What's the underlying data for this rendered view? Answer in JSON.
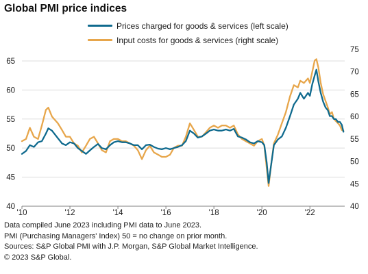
{
  "title": "Global PMI price indices",
  "legend": [
    {
      "label": "Prices charged for goods & services (left scale)",
      "color": "#0f6a8e"
    },
    {
      "label": "Input costs for goods & services (right scale)",
      "color": "#e7a64b"
    }
  ],
  "notes": [
    "Data compiled June 2023 including PMI data to June 2023.",
    "PMI (Purchasing Managers' Index) 50 = no change on prior month.",
    "Sources: S&P Global PMI with J.P. Morgan, S&P Global Market Intelligence.",
    "© 2023 S&P Global."
  ],
  "chart_data": {
    "type": "line",
    "title": "Global PMI price indices",
    "x_range": [
      2010.0,
      2023.45
    ],
    "x_ticks": [
      {
        "value": 2010,
        "label": "'10"
      },
      {
        "value": 2012,
        "label": "'12"
      },
      {
        "value": 2014,
        "label": "'14"
      },
      {
        "value": 2016,
        "label": "'16"
      },
      {
        "value": 2018,
        "label": "'18"
      },
      {
        "value": 2020,
        "label": "'20"
      },
      {
        "value": 2022,
        "label": "'22"
      }
    ],
    "y_left": {
      "range": [
        40,
        67
      ],
      "ticks": [
        40,
        45,
        50,
        55,
        60,
        65
      ]
    },
    "y_right": {
      "range": [
        40,
        75
      ],
      "ticks": [
        40,
        45,
        50,
        55,
        60,
        65,
        70,
        75
      ]
    },
    "grid": "horizontal",
    "legend_position": "top",
    "series": [
      {
        "name": "Prices charged for goods & services (left scale)",
        "axis": "left",
        "color": "#0f6a8e",
        "points": [
          [
            2010.0,
            49.0
          ],
          [
            2010.17,
            49.5
          ],
          [
            2010.33,
            50.5
          ],
          [
            2010.5,
            50.2
          ],
          [
            2010.67,
            51.0
          ],
          [
            2010.83,
            51.2
          ],
          [
            2011.0,
            52.5
          ],
          [
            2011.1,
            53.4
          ],
          [
            2011.25,
            53.0
          ],
          [
            2011.5,
            51.7
          ],
          [
            2011.67,
            50.8
          ],
          [
            2011.83,
            50.5
          ],
          [
            2012.0,
            51.0
          ],
          [
            2012.17,
            50.8
          ],
          [
            2012.33,
            50.0
          ],
          [
            2012.5,
            49.5
          ],
          [
            2012.67,
            49.0
          ],
          [
            2012.83,
            49.6
          ],
          [
            2013.0,
            50.2
          ],
          [
            2013.17,
            50.7
          ],
          [
            2013.33,
            50.0
          ],
          [
            2013.5,
            49.8
          ],
          [
            2013.67,
            50.5
          ],
          [
            2013.83,
            51.0
          ],
          [
            2014.0,
            51.2
          ],
          [
            2014.17,
            51.0
          ],
          [
            2014.33,
            51.0
          ],
          [
            2014.5,
            50.8
          ],
          [
            2014.67,
            50.5
          ],
          [
            2014.83,
            50.5
          ],
          [
            2015.0,
            49.8
          ],
          [
            2015.17,
            50.5
          ],
          [
            2015.33,
            50.6
          ],
          [
            2015.5,
            50.2
          ],
          [
            2015.67,
            49.9
          ],
          [
            2015.83,
            49.8
          ],
          [
            2016.0,
            50.0
          ],
          [
            2016.17,
            49.8
          ],
          [
            2016.33,
            50.0
          ],
          [
            2016.5,
            50.2
          ],
          [
            2016.67,
            50.5
          ],
          [
            2016.83,
            51.2
          ],
          [
            2017.0,
            53.0
          ],
          [
            2017.17,
            52.5
          ],
          [
            2017.33,
            51.8
          ],
          [
            2017.5,
            52.0
          ],
          [
            2017.67,
            52.5
          ],
          [
            2017.83,
            53.0
          ],
          [
            2018.0,
            53.2
          ],
          [
            2018.17,
            53.0
          ],
          [
            2018.33,
            53.0
          ],
          [
            2018.5,
            53.2
          ],
          [
            2018.67,
            53.0
          ],
          [
            2018.83,
            53.3
          ],
          [
            2019.0,
            52.0
          ],
          [
            2019.17,
            51.8
          ],
          [
            2019.33,
            51.5
          ],
          [
            2019.5,
            51.0
          ],
          [
            2019.67,
            50.8
          ],
          [
            2019.83,
            51.2
          ],
          [
            2020.0,
            51.0
          ],
          [
            2020.1,
            50.5
          ],
          [
            2020.2,
            47.5
          ],
          [
            2020.28,
            44.0
          ],
          [
            2020.38,
            47.0
          ],
          [
            2020.5,
            50.5
          ],
          [
            2020.67,
            51.5
          ],
          [
            2020.83,
            52.0
          ],
          [
            2021.0,
            53.5
          ],
          [
            2021.17,
            55.5
          ],
          [
            2021.33,
            57.5
          ],
          [
            2021.5,
            58.5
          ],
          [
            2021.6,
            59.5
          ],
          [
            2021.75,
            58.5
          ],
          [
            2021.92,
            59.5
          ],
          [
            2022.0,
            59.0
          ],
          [
            2022.1,
            61.0
          ],
          [
            2022.2,
            62.5
          ],
          [
            2022.27,
            63.5
          ],
          [
            2022.35,
            61.5
          ],
          [
            2022.45,
            59.5
          ],
          [
            2022.55,
            58.0
          ],
          [
            2022.65,
            57.0
          ],
          [
            2022.75,
            56.5
          ],
          [
            2022.83,
            55.5
          ],
          [
            2022.92,
            55.5
          ],
          [
            2023.0,
            55.0
          ],
          [
            2023.08,
            55.0
          ],
          [
            2023.17,
            54.5
          ],
          [
            2023.25,
            54.5
          ],
          [
            2023.33,
            54.0
          ],
          [
            2023.4,
            52.8
          ]
        ]
      },
      {
        "name": "Input costs for goods & services (right scale)",
        "axis": "right",
        "color": "#e7a64b",
        "points": [
          [
            2010.0,
            54.5
          ],
          [
            2010.17,
            55.0
          ],
          [
            2010.33,
            57.5
          ],
          [
            2010.5,
            55.5
          ],
          [
            2010.67,
            55.0
          ],
          [
            2010.83,
            58.0
          ],
          [
            2011.0,
            61.5
          ],
          [
            2011.1,
            62.0
          ],
          [
            2011.25,
            60.0
          ],
          [
            2011.5,
            58.5
          ],
          [
            2011.67,
            57.0
          ],
          [
            2011.83,
            55.5
          ],
          [
            2012.0,
            55.5
          ],
          [
            2012.17,
            54.0
          ],
          [
            2012.33,
            53.5
          ],
          [
            2012.5,
            52.0
          ],
          [
            2012.67,
            53.5
          ],
          [
            2012.83,
            55.0
          ],
          [
            2013.0,
            55.5
          ],
          [
            2013.17,
            54.0
          ],
          [
            2013.33,
            52.5
          ],
          [
            2013.5,
            52.0
          ],
          [
            2013.67,
            54.5
          ],
          [
            2013.83,
            55.0
          ],
          [
            2014.0,
            55.0
          ],
          [
            2014.17,
            54.5
          ],
          [
            2014.33,
            54.5
          ],
          [
            2014.5,
            54.0
          ],
          [
            2014.67,
            53.5
          ],
          [
            2014.83,
            52.5
          ],
          [
            2015.0,
            50.5
          ],
          [
            2015.17,
            52.5
          ],
          [
            2015.33,
            53.5
          ],
          [
            2015.5,
            52.0
          ],
          [
            2015.67,
            51.5
          ],
          [
            2015.83,
            51.0
          ],
          [
            2016.0,
            51.0
          ],
          [
            2016.17,
            51.5
          ],
          [
            2016.33,
            53.0
          ],
          [
            2016.5,
            53.5
          ],
          [
            2016.67,
            53.5
          ],
          [
            2016.83,
            55.5
          ],
          [
            2017.0,
            58.5
          ],
          [
            2017.17,
            57.0
          ],
          [
            2017.33,
            55.5
          ],
          [
            2017.5,
            55.5
          ],
          [
            2017.67,
            56.5
          ],
          [
            2017.83,
            57.5
          ],
          [
            2018.0,
            58.0
          ],
          [
            2018.17,
            57.5
          ],
          [
            2018.33,
            58.0
          ],
          [
            2018.5,
            58.0
          ],
          [
            2018.67,
            57.5
          ],
          [
            2018.83,
            58.0
          ],
          [
            2019.0,
            56.0
          ],
          [
            2019.17,
            55.0
          ],
          [
            2019.33,
            54.5
          ],
          [
            2019.5,
            54.0
          ],
          [
            2019.67,
            53.5
          ],
          [
            2019.83,
            54.5
          ],
          [
            2020.0,
            55.0
          ],
          [
            2020.1,
            53.5
          ],
          [
            2020.2,
            48.5
          ],
          [
            2020.28,
            44.5
          ],
          [
            2020.38,
            49.0
          ],
          [
            2020.5,
            54.0
          ],
          [
            2020.67,
            56.0
          ],
          [
            2020.83,
            58.5
          ],
          [
            2021.0,
            61.0
          ],
          [
            2021.17,
            64.5
          ],
          [
            2021.33,
            67.0
          ],
          [
            2021.5,
            66.5
          ],
          [
            2021.6,
            68.0
          ],
          [
            2021.75,
            67.5
          ],
          [
            2021.92,
            68.5
          ],
          [
            2022.0,
            67.5
          ],
          [
            2022.1,
            70.0
          ],
          [
            2022.2,
            72.5
          ],
          [
            2022.27,
            72.8
          ],
          [
            2022.35,
            71.0
          ],
          [
            2022.45,
            67.5
          ],
          [
            2022.55,
            65.0
          ],
          [
            2022.65,
            63.5
          ],
          [
            2022.75,
            62.0
          ],
          [
            2022.83,
            60.5
          ],
          [
            2022.92,
            61.0
          ],
          [
            2023.0,
            59.5
          ],
          [
            2023.08,
            59.0
          ],
          [
            2023.17,
            58.5
          ],
          [
            2023.25,
            58.0
          ],
          [
            2023.33,
            57.0
          ],
          [
            2023.4,
            56.8
          ]
        ]
      }
    ]
  }
}
